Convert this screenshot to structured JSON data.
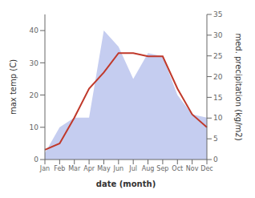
{
  "chart_data": {
    "type": "line",
    "xlabel": "date (month)",
    "ylabel": "max temp (C)",
    "y2label": "med. precipitation (kg/m2)",
    "categories": [
      "Jan",
      "Feb",
      "Mar",
      "Apr",
      "May",
      "Jun",
      "Jul",
      "Aug",
      "Sep",
      "Oct",
      "Nov",
      "Dec"
    ],
    "series": [
      {
        "type": "area",
        "color": "#c5cdf0",
        "values": [
          2,
          10,
          13,
          13,
          40,
          35,
          25,
          33,
          32,
          20,
          14,
          13
        ]
      },
      {
        "type": "line",
        "color": "#c0392b",
        "values": [
          3,
          5,
          13,
          22,
          27,
          33,
          33,
          32,
          32,
          22,
          14,
          10
        ]
      }
    ],
    "ylim": [
      0,
      45
    ],
    "yticks": [
      0,
      10,
      20,
      30,
      40
    ],
    "y2lim": [
      0,
      35
    ],
    "y2ticks": [
      0,
      5,
      10,
      15,
      20,
      25,
      30,
      35
    ],
    "grid": false
  }
}
